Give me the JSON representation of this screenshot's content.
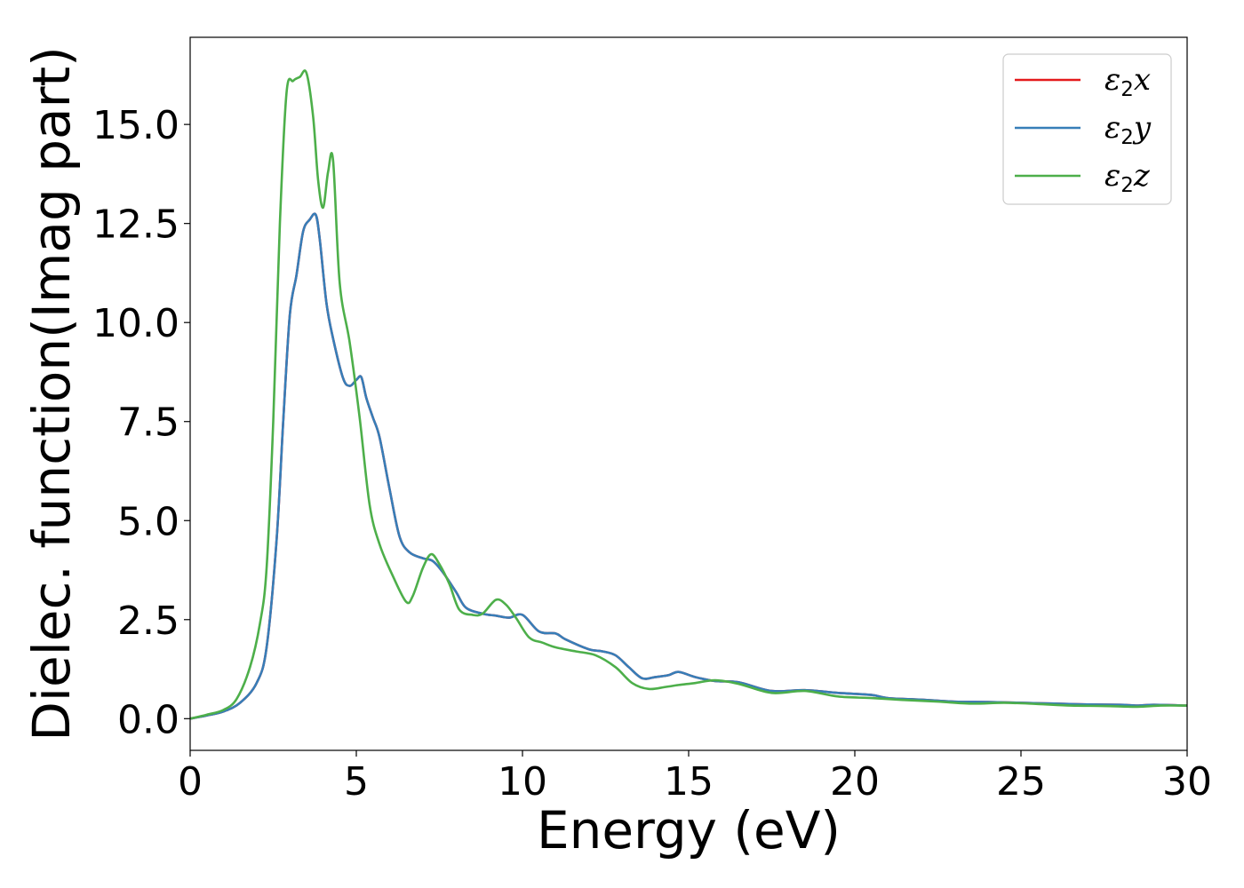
{
  "chart_data": {
    "type": "line",
    "xlabel": "Energy (eV)",
    "ylabel": "Dielec. function(Imag part)",
    "xlim": [
      0,
      30
    ],
    "ylim": [
      -0.8,
      17.2
    ],
    "xticks": [
      0,
      5,
      10,
      15,
      20,
      25,
      30
    ],
    "xtick_labels": [
      "0",
      "5",
      "10",
      "15",
      "20",
      "25",
      "30"
    ],
    "yticks": [
      0.0,
      2.5,
      5.0,
      7.5,
      10.0,
      12.5,
      15.0
    ],
    "ytick_labels": [
      "0.0",
      "2.5",
      "5.0",
      "7.5",
      "10.0",
      "12.5",
      "15.0"
    ],
    "grid": false,
    "legend_position": "top-right",
    "series": [
      {
        "name": "ε2x",
        "legend_main": "ε",
        "legend_sub": "2",
        "legend_tail": "x",
        "color": "#e41a1c",
        "x": [
          0,
          0.5,
          1,
          1.5,
          2,
          2.3,
          2.6,
          2.8,
          3,
          3.2,
          3.4,
          3.6,
          3.78,
          3.9,
          4.1,
          4.3,
          4.6,
          4.8,
          5,
          5.15,
          5.3,
          5.5,
          5.7,
          6,
          6.3,
          6.6,
          7,
          7.3,
          7.6,
          8,
          8.3,
          8.8,
          9.2,
          9.6,
          10,
          10.5,
          11,
          11.3,
          12,
          12.4,
          12.8,
          13.2,
          13.6,
          14,
          14.4,
          14.7,
          15.2,
          15.8,
          16.5,
          17.5,
          18.5,
          19.5,
          20.5,
          21,
          22,
          23,
          24,
          25,
          26,
          27,
          28,
          28.5,
          29,
          30
        ],
        "y": [
          0,
          0.08,
          0.18,
          0.4,
          0.9,
          1.8,
          4.5,
          7.5,
          10.2,
          11.2,
          12.3,
          12.6,
          12.72,
          12.1,
          10.5,
          9.6,
          8.6,
          8.4,
          8.55,
          8.62,
          8.1,
          7.6,
          7.1,
          5.8,
          4.6,
          4.2,
          4.05,
          3.98,
          3.7,
          3.2,
          2.8,
          2.65,
          2.6,
          2.55,
          2.62,
          2.2,
          2.15,
          2.0,
          1.75,
          1.7,
          1.6,
          1.3,
          1.02,
          1.05,
          1.1,
          1.18,
          1.05,
          0.95,
          0.92,
          0.7,
          0.72,
          0.65,
          0.6,
          0.52,
          0.48,
          0.43,
          0.42,
          0.4,
          0.38,
          0.36,
          0.35,
          0.33,
          0.35,
          0.33
        ]
      },
      {
        "name": "ε2y",
        "legend_main": "ε",
        "legend_sub": "2",
        "legend_tail": "y",
        "color": "#377eb8",
        "x": [
          0,
          0.5,
          1,
          1.5,
          2,
          2.3,
          2.6,
          2.8,
          3,
          3.2,
          3.4,
          3.6,
          3.78,
          3.9,
          4.1,
          4.3,
          4.6,
          4.8,
          5,
          5.15,
          5.3,
          5.5,
          5.7,
          6,
          6.3,
          6.6,
          7,
          7.3,
          7.6,
          8,
          8.3,
          8.8,
          9.2,
          9.6,
          10,
          10.5,
          11,
          11.3,
          12,
          12.4,
          12.8,
          13.2,
          13.6,
          14,
          14.4,
          14.7,
          15.2,
          15.8,
          16.5,
          17.5,
          18.5,
          19.5,
          20.5,
          21,
          22,
          23,
          24,
          25,
          26,
          27,
          28,
          28.5,
          29,
          30
        ],
        "y": [
          0,
          0.08,
          0.18,
          0.4,
          0.9,
          1.8,
          4.5,
          7.5,
          10.2,
          11.2,
          12.3,
          12.6,
          12.72,
          12.1,
          10.5,
          9.6,
          8.6,
          8.4,
          8.55,
          8.62,
          8.1,
          7.6,
          7.1,
          5.8,
          4.6,
          4.2,
          4.05,
          3.98,
          3.7,
          3.2,
          2.8,
          2.65,
          2.6,
          2.55,
          2.62,
          2.2,
          2.15,
          2.0,
          1.75,
          1.7,
          1.6,
          1.3,
          1.02,
          1.05,
          1.1,
          1.18,
          1.05,
          0.95,
          0.92,
          0.7,
          0.72,
          0.65,
          0.6,
          0.52,
          0.48,
          0.43,
          0.42,
          0.4,
          0.38,
          0.36,
          0.35,
          0.33,
          0.35,
          0.33
        ]
      },
      {
        "name": "ε2z",
        "legend_main": "ε",
        "legend_sub": "2",
        "legend_tail": "z",
        "color": "#4daf4a",
        "x": [
          0,
          0.5,
          1,
          1.4,
          1.8,
          2.1,
          2.3,
          2.5,
          2.7,
          2.9,
          3.1,
          3.3,
          3.5,
          3.7,
          3.85,
          4,
          4.15,
          4.3,
          4.5,
          4.8,
          5.1,
          5.4,
          5.7,
          6.1,
          6.5,
          6.7,
          7,
          7.25,
          7.5,
          7.8,
          8.1,
          8.5,
          8.8,
          9.2,
          9.5,
          9.8,
          10.2,
          10.6,
          11,
          11.6,
          12.2,
          12.8,
          13.3,
          13.8,
          14.3,
          14.7,
          15.2,
          15.8,
          16.5,
          17.5,
          18.5,
          19.5,
          20.5,
          21.5,
          22.5,
          23.5,
          24.5,
          25.5,
          26.5,
          27.5,
          28.5,
          29.2,
          30
        ],
        "y": [
          0,
          0.1,
          0.22,
          0.5,
          1.3,
          2.4,
          3.8,
          7.5,
          12.5,
          15.8,
          16.1,
          16.2,
          16.3,
          15.2,
          13.6,
          12.9,
          13.8,
          14.1,
          11.0,
          9.5,
          7.6,
          5.4,
          4.4,
          3.6,
          2.95,
          3.1,
          3.8,
          4.15,
          3.9,
          3.4,
          2.75,
          2.62,
          2.65,
          3.0,
          2.88,
          2.55,
          2.05,
          1.92,
          1.8,
          1.7,
          1.6,
          1.3,
          0.9,
          0.75,
          0.8,
          0.85,
          0.9,
          0.97,
          0.88,
          0.65,
          0.7,
          0.56,
          0.52,
          0.47,
          0.43,
          0.38,
          0.4,
          0.37,
          0.33,
          0.32,
          0.3,
          0.33,
          0.33
        ]
      }
    ]
  }
}
